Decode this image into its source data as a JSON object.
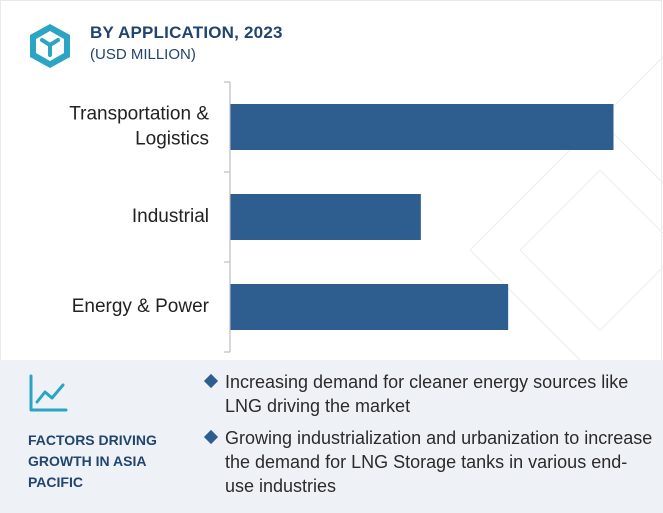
{
  "header": {
    "title": "BY APPLICATION, 2023",
    "subtitle": "(USD MILLION)"
  },
  "colors": {
    "bar": "#2e5d8f",
    "heading": "#21456e",
    "footer_bg": "#eef1f6"
  },
  "chart_data": {
    "type": "bar",
    "orientation": "horizontal",
    "categories": [
      [
        "Transportation &",
        "Logistics"
      ],
      [
        "Industrial"
      ],
      [
        "Energy & Power"
      ]
    ],
    "values": [
      100,
      49.7,
      72.5
    ],
    "xlim": [
      0,
      100
    ],
    "value_axis_labels": "none",
    "grid": false
  },
  "footer": {
    "icon": "trend-chart-icon",
    "label": "FACTORS DRIVING GROWTH IN ASIA PACIFIC",
    "bullets": [
      "Increasing demand for cleaner energy sources like LNG driving the market",
      "Growing industrialization and urbanization to increase the demand for LNG Storage tanks in various end-use industries"
    ]
  }
}
